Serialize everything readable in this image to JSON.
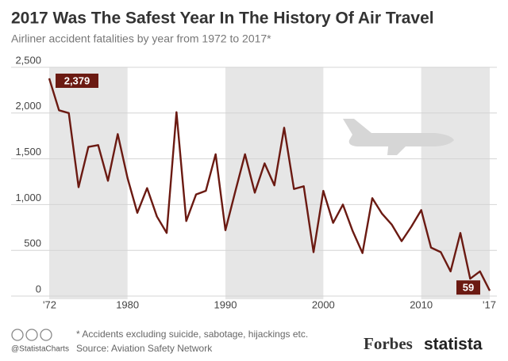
{
  "chart_data": {
    "type": "line",
    "title": "2017 Was The Safest Year In The History Of Air Travel",
    "subtitle": "Airliner accident fatalities by year from 1972 to 2017*",
    "x": [
      1972,
      1973,
      1974,
      1975,
      1976,
      1977,
      1978,
      1979,
      1980,
      1981,
      1982,
      1983,
      1984,
      1985,
      1986,
      1987,
      1988,
      1989,
      1990,
      1991,
      1992,
      1993,
      1994,
      1995,
      1996,
      1997,
      1998,
      1999,
      2000,
      2001,
      2002,
      2003,
      2004,
      2005,
      2006,
      2007,
      2008,
      2009,
      2010,
      2011,
      2012,
      2013,
      2014,
      2015,
      2016,
      2017
    ],
    "series": [
      {
        "name": "Airliner accident fatalities",
        "color": "#6b1a12",
        "values": [
          2379,
          2030,
          2000,
          1190,
          1630,
          1650,
          1260,
          1770,
          1290,
          910,
          1180,
          870,
          690,
          2010,
          820,
          1110,
          1150,
          1550,
          720,
          1140,
          1550,
          1130,
          1450,
          1210,
          1840,
          1170,
          1200,
          480,
          1150,
          800,
          1000,
          710,
          470,
          1070,
          900,
          780,
          600,
          760,
          940,
          530,
          480,
          270,
          690,
          190,
          270,
          59
        ],
        "value_labels": [
          "2,379",
          null,
          null,
          null,
          null,
          null,
          null,
          null,
          null,
          null,
          null,
          null,
          null,
          null,
          null,
          null,
          null,
          null,
          null,
          null,
          null,
          null,
          null,
          null,
          null,
          null,
          null,
          null,
          null,
          null,
          null,
          null,
          null,
          null,
          null,
          null,
          null,
          null,
          null,
          null,
          null,
          null,
          null,
          null,
          null,
          "59"
        ]
      }
    ],
    "xlim": [
      1972,
      2017
    ],
    "xticks": [
      {
        "value": 1972,
        "label": "'72"
      },
      1980,
      1990,
      2000,
      2010,
      {
        "value": 2017,
        "label": "'17"
      }
    ],
    "ylim": [
      0,
      2500
    ],
    "yticks": [
      0,
      500,
      {
        "value": 1000,
        "label": "1,000"
      },
      {
        "value": 1500,
        "label": "1,500"
      },
      {
        "value": 2000,
        "label": "2,000"
      },
      {
        "value": 2500,
        "label": "2,500"
      }
    ],
    "grid": true,
    "footnote": "* Accidents excluding suicide, sabotage, hijackings etc.",
    "source": "Source: Aviation Safety Network",
    "handle": "@StatistaCharts",
    "brands": [
      "Forbes",
      "statista"
    ]
  }
}
